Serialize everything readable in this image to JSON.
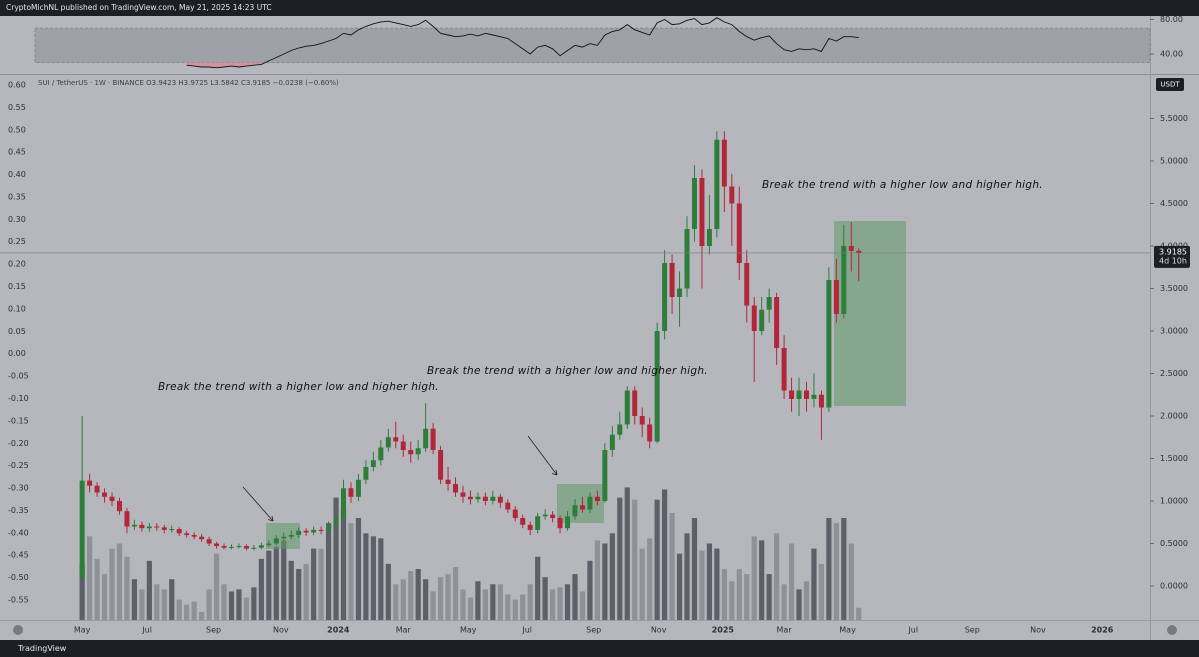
{
  "header": {
    "text": "CryptoMichNL published on TradingView.com, May 21, 2025 14:23 UTC"
  },
  "footer": {
    "brand": "TradingView"
  },
  "chart_data": {
    "type": "candlestick",
    "legend_text": "SUI / TetherUS · 1W · BINANCE  O3.9423 H3.9725 L3.5842 C3.9185 −0.0238 (−0.60%)",
    "currency_label": "USDT",
    "last_price_label": "3.9185",
    "countdown": "4d 10h",
    "up_color": "#2f7d3b",
    "down_color": "#b3263a",
    "open": [
      0.1,
      1.24,
      1.18,
      1.1,
      1.05,
      1.0,
      0.88,
      0.7,
      0.72,
      0.68,
      0.7,
      0.69,
      0.66,
      0.67,
      0.62,
      0.6,
      0.58,
      0.55,
      0.5,
      0.47,
      0.45,
      0.46,
      0.47,
      0.44,
      0.45,
      0.48,
      0.5,
      0.56,
      0.58,
      0.6,
      0.65,
      0.63,
      0.66,
      0.65,
      0.72,
      0.8,
      1.15,
      1.05,
      1.25,
      1.4,
      1.48,
      1.63,
      1.75,
      1.7,
      1.6,
      1.55,
      1.62,
      1.85,
      1.6,
      1.25,
      1.2,
      1.1,
      1.05,
      1.02,
      1.05,
      1.0,
      1.05,
      0.98,
      0.9,
      0.8,
      0.72,
      0.66,
      0.82,
      0.84,
      0.8,
      0.68,
      0.82,
      0.95,
      0.9,
      1.05,
      1.0,
      1.6,
      1.78,
      1.9,
      2.3,
      2.0,
      1.9,
      1.7,
      3.0,
      3.8,
      3.4,
      3.5,
      4.2,
      4.8,
      4.0,
      4.2,
      5.25,
      4.7,
      4.5,
      3.8,
      3.3,
      3.0,
      3.25,
      3.4,
      2.8,
      2.3,
      2.2,
      2.3,
      2.2,
      2.25,
      2.1,
      3.6,
      3.2,
      4.0,
      3.9423
    ],
    "high": [
      2.0,
      1.32,
      1.22,
      1.15,
      1.1,
      1.04,
      0.92,
      0.78,
      0.76,
      0.74,
      0.74,
      0.72,
      0.71,
      0.69,
      0.65,
      0.63,
      0.61,
      0.58,
      0.52,
      0.5,
      0.49,
      0.5,
      0.49,
      0.48,
      0.51,
      0.54,
      0.6,
      0.63,
      0.65,
      0.69,
      0.68,
      0.7,
      0.7,
      0.76,
      0.86,
      1.25,
      1.22,
      1.32,
      1.48,
      1.58,
      1.72,
      1.85,
      1.93,
      1.78,
      1.7,
      1.72,
      2.15,
      1.92,
      1.65,
      1.4,
      1.28,
      1.18,
      1.12,
      1.1,
      1.1,
      1.12,
      1.08,
      1.02,
      0.94,
      0.84,
      0.76,
      0.86,
      0.9,
      0.88,
      0.83,
      0.88,
      1.02,
      1.05,
      1.1,
      1.12,
      1.68,
      1.88,
      2.05,
      2.35,
      2.35,
      2.1,
      1.98,
      3.1,
      3.95,
      3.9,
      3.7,
      4.35,
      4.95,
      4.9,
      4.6,
      5.35,
      5.35,
      4.85,
      4.7,
      3.95,
      3.4,
      3.4,
      3.5,
      3.45,
      2.95,
      2.45,
      2.45,
      2.4,
      2.5,
      2.3,
      3.75,
      3.85,
      4.25,
      4.28,
      3.9725
    ],
    "low": [
      0.08,
      1.1,
      1.05,
      0.98,
      0.94,
      0.84,
      0.62,
      0.66,
      0.64,
      0.64,
      0.65,
      0.62,
      0.63,
      0.59,
      0.57,
      0.55,
      0.52,
      0.47,
      0.44,
      0.43,
      0.43,
      0.44,
      0.42,
      0.42,
      0.43,
      0.46,
      0.48,
      0.53,
      0.55,
      0.57,
      0.59,
      0.6,
      0.61,
      0.62,
      0.69,
      0.78,
      0.98,
      1.0,
      1.2,
      1.35,
      1.42,
      1.58,
      1.62,
      1.52,
      1.45,
      1.48,
      1.58,
      1.55,
      1.2,
      1.12,
      1.05,
      0.98,
      0.96,
      0.98,
      0.95,
      0.96,
      0.92,
      0.86,
      0.76,
      0.68,
      0.6,
      0.62,
      0.78,
      0.75,
      0.62,
      0.65,
      0.78,
      0.86,
      0.86,
      0.95,
      0.98,
      1.52,
      1.72,
      1.85,
      1.9,
      1.75,
      1.62,
      1.68,
      2.9,
      3.2,
      3.05,
      3.4,
      4.05,
      3.5,
      3.9,
      4.1,
      4.4,
      4.0,
      3.6,
      3.1,
      2.4,
      2.95,
      3.1,
      2.6,
      2.2,
      2.05,
      2.0,
      2.05,
      2.1,
      1.72,
      2.05,
      3.1,
      3.15,
      3.7,
      3.5842
    ],
    "close": [
      1.24,
      1.18,
      1.1,
      1.05,
      1.0,
      0.88,
      0.7,
      0.72,
      0.68,
      0.7,
      0.69,
      0.66,
      0.67,
      0.62,
      0.6,
      0.58,
      0.55,
      0.5,
      0.47,
      0.45,
      0.46,
      0.47,
      0.44,
      0.45,
      0.48,
      0.5,
      0.56,
      0.58,
      0.6,
      0.65,
      0.63,
      0.66,
      0.65,
      0.72,
      0.8,
      1.15,
      1.05,
      1.25,
      1.4,
      1.48,
      1.63,
      1.75,
      1.7,
      1.6,
      1.55,
      1.62,
      1.85,
      1.6,
      1.25,
      1.2,
      1.1,
      1.05,
      1.02,
      1.05,
      1.0,
      1.05,
      0.98,
      0.9,
      0.8,
      0.72,
      0.66,
      0.82,
      0.84,
      0.8,
      0.68,
      0.82,
      0.95,
      0.9,
      1.05,
      1.0,
      1.6,
      1.78,
      1.9,
      2.3,
      2.0,
      1.9,
      1.7,
      3.0,
      3.8,
      3.4,
      3.5,
      4.2,
      4.8,
      4.0,
      4.2,
      5.25,
      4.7,
      4.5,
      3.8,
      3.3,
      3.0,
      3.25,
      3.4,
      2.8,
      2.3,
      2.2,
      2.3,
      2.2,
      2.25,
      2.1,
      3.6,
      3.2,
      4.0,
      3.9423,
      3.9185
    ],
    "volume": [
      55,
      82,
      60,
      45,
      70,
      75,
      62,
      40,
      30,
      58,
      35,
      30,
      40,
      20,
      15,
      18,
      8,
      30,
      65,
      35,
      28,
      30,
      22,
      32,
      60,
      68,
      72,
      78,
      58,
      50,
      55,
      70,
      70,
      95,
      120,
      110,
      95,
      100,
      85,
      82,
      80,
      55,
      35,
      40,
      48,
      50,
      40,
      28,
      42,
      45,
      52,
      30,
      22,
      38,
      30,
      35,
      35,
      25,
      20,
      25,
      35,
      62,
      42,
      30,
      32,
      35,
      45,
      28,
      58,
      78,
      75,
      85,
      120,
      130,
      118,
      70,
      80,
      118,
      128,
      105,
      65,
      85,
      100,
      68,
      75,
      70,
      50,
      38,
      50,
      45,
      82,
      78,
      45,
      85,
      35,
      75,
      30,
      38,
      70,
      55,
      100,
      95,
      100,
      75,
      12
    ],
    "rsi": [
      null,
      null,
      null,
      null,
      null,
      null,
      null,
      null,
      null,
      null,
      null,
      null,
      null,
      null,
      27,
      26,
      25,
      25,
      24,
      25,
      26,
      25,
      26,
      27,
      28,
      32,
      36,
      40,
      44,
      47,
      49,
      50,
      52,
      55,
      58,
      64,
      62,
      68,
      72,
      75,
      77,
      78,
      76,
      74,
      72,
      74,
      79,
      72,
      64,
      62,
      60,
      61,
      63,
      61,
      64,
      62,
      60,
      58,
      52,
      46,
      40,
      48,
      50,
      46,
      38,
      44,
      50,
      48,
      52,
      50,
      62,
      66,
      68,
      74,
      68,
      65,
      62,
      76,
      80,
      74,
      75,
      79,
      81,
      74,
      76,
      82,
      77,
      74,
      66,
      60,
      56,
      59,
      61,
      52,
      45,
      43,
      46,
      45,
      46,
      43,
      58,
      55,
      60,
      60,
      59
    ],
    "rsi_band": [
      30,
      70
    ],
    "y2lim": [
      18,
      84
    ],
    "y2ticks": [
      {
        "value": 80,
        "label": "80.00"
      },
      {
        "value": 40,
        "label": "40.00"
      }
    ],
    "ylim": [
      -0.4,
      6.0
    ],
    "yticks": [
      {
        "value": 0,
        "label": "0.0000"
      },
      {
        "value": 0.5,
        "label": "0.5000"
      },
      {
        "value": 1,
        "label": "1.0000"
      },
      {
        "value": 1.5,
        "label": "1.5000"
      },
      {
        "value": 2,
        "label": "2.0000"
      },
      {
        "value": 2.5,
        "label": "2.5000"
      },
      {
        "value": 3,
        "label": "3.0000"
      },
      {
        "value": 3.5,
        "label": "3.5000"
      },
      {
        "value": 4,
        "label": "4.0000"
      },
      {
        "value": 4.5,
        "label": "4.5000"
      },
      {
        "value": 5,
        "label": "5.0000"
      },
      {
        "value": 5.5,
        "label": "5.5000"
      }
    ],
    "left_ticks": [
      {
        "value": 0.6,
        "label": "0.60"
      },
      {
        "value": 0.55,
        "label": "0.55"
      },
      {
        "value": 0.5,
        "label": "0.50"
      },
      {
        "value": 0.45,
        "label": "0.45"
      },
      {
        "value": 0.4,
        "label": "0.40"
      },
      {
        "value": 0.35,
        "label": "0.35"
      },
      {
        "value": 0.3,
        "label": "0.30"
      },
      {
        "value": 0.25,
        "label": "0.25"
      },
      {
        "value": 0.2,
        "label": "0.20"
      },
      {
        "value": 0.15,
        "label": "0.15"
      },
      {
        "value": 0.1,
        "label": "0.10"
      },
      {
        "value": 0.05,
        "label": "0.05"
      },
      {
        "value": 0,
        "label": "0.00"
      },
      {
        "value": -0.05,
        "label": "-0.05"
      },
      {
        "value": -0.1,
        "label": "-0.10"
      },
      {
        "value": -0.15,
        "label": "-0.15"
      },
      {
        "value": -0.2,
        "label": "-0.20"
      },
      {
        "value": -0.25,
        "label": "-0.25"
      },
      {
        "value": -0.3,
        "label": "-0.30"
      },
      {
        "value": -0.35,
        "label": "-0.35"
      },
      {
        "value": -0.4,
        "label": "-0.40"
      },
      {
        "value": -0.45,
        "label": "-0.45"
      },
      {
        "value": -0.5,
        "label": "-0.50"
      },
      {
        "value": -0.55,
        "label": "-0.55"
      }
    ],
    "xlim": [
      -11,
      143
    ],
    "xticks": [
      {
        "value": 0,
        "label": "May"
      },
      {
        "value": 8.7,
        "label": "Jul"
      },
      {
        "value": 17.6,
        "label": "Sep"
      },
      {
        "value": 26.6,
        "label": "Nov"
      },
      {
        "value": 34.3,
        "label": "2024"
      },
      {
        "value": 43,
        "label": "Mar"
      },
      {
        "value": 51.7,
        "label": "May"
      },
      {
        "value": 59.6,
        "label": "Jul"
      },
      {
        "value": 68.5,
        "label": "Sep"
      },
      {
        "value": 77.2,
        "label": "Nov"
      },
      {
        "value": 85.8,
        "label": "2025"
      },
      {
        "value": 94,
        "label": "Mar"
      },
      {
        "value": 102.5,
        "label": "May"
      },
      {
        "value": 111.3,
        "label": "Jul"
      },
      {
        "value": 119.2,
        "label": "Sep"
      },
      {
        "value": 128,
        "label": "Nov"
      },
      {
        "value": 136.6,
        "label": "2026"
      }
    ],
    "annotations": [
      "Break the trend with a higher low and higher high.",
      "Break the trend with a higher low and higher high.",
      "Break the trend with a higher low and higher high."
    ]
  }
}
